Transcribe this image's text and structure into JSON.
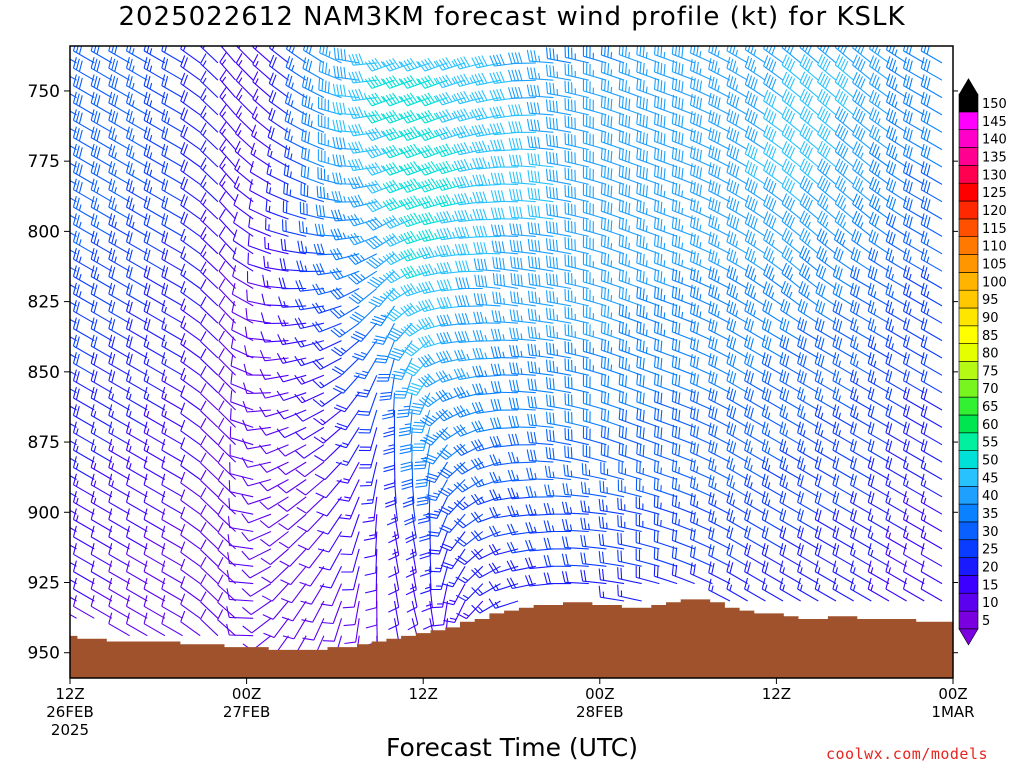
{
  "title": "2025022612 NAM3KM forecast wind profile (kt) for KSLK",
  "credit": "coolwx.com/models",
  "chart_data": {
    "type": "wind-barb-time-height",
    "xlabel": "Forecast Time (UTC)",
    "ylabel": "",
    "y_ticks": [
      750,
      775,
      800,
      825,
      850,
      875,
      900,
      925,
      950
    ],
    "y_range_hpa": [
      734,
      959
    ],
    "x_range_hours": [
      0,
      60
    ],
    "x_ticks": [
      {
        "hour": 0,
        "lines": [
          "12Z",
          "26FEB",
          "2025"
        ]
      },
      {
        "hour": 12,
        "lines": [
          "00Z",
          "27FEB"
        ]
      },
      {
        "hour": 24,
        "lines": [
          "12Z"
        ]
      },
      {
        "hour": 36,
        "lines": [
          "00Z",
          "28FEB"
        ]
      },
      {
        "hour": 48,
        "lines": [
          "12Z"
        ]
      },
      {
        "hour": 60,
        "lines": [
          "00Z",
          "1MAR"
        ]
      }
    ],
    "colorbar": {
      "levels": [
        5,
        10,
        15,
        20,
        25,
        30,
        35,
        40,
        45,
        50,
        55,
        60,
        65,
        70,
        75,
        80,
        85,
        90,
        95,
        100,
        105,
        110,
        115,
        120,
        125,
        130,
        135,
        140,
        145,
        150
      ],
      "colors": [
        "#7b00e0",
        "#5c00f0",
        "#3b00ff",
        "#1a1aff",
        "#0a3cff",
        "#0a5fff",
        "#0a82ff",
        "#1ea0ff",
        "#28c3ff",
        "#00e0d8",
        "#00f0a0",
        "#00e650",
        "#32f032",
        "#78f51e",
        "#b4fa14",
        "#e6ff00",
        "#ffff00",
        "#ffe600",
        "#ffc800",
        "#ffb400",
        "#ff9600",
        "#ff7800",
        "#ff5000",
        "#ff2800",
        "#ff0000",
        "#ff0050",
        "#ff0090",
        "#ff00c8",
        "#ff00ff",
        "#000000"
      ]
    },
    "terrain_pressure_hpa": [
      944,
      945,
      945,
      946,
      946,
      946,
      946,
      946,
      947,
      947,
      947,
      948,
      948,
      948,
      949,
      949,
      949,
      949,
      948,
      948,
      947,
      946,
      945,
      944,
      943,
      942,
      941,
      939,
      938,
      936,
      935,
      934,
      933,
      933,
      932,
      932,
      933,
      933,
      934,
      934,
      933,
      932,
      931,
      931,
      932,
      934,
      935,
      936,
      936,
      937,
      938,
      938,
      937,
      937,
      938,
      938,
      938,
      938,
      939,
      939,
      939
    ],
    "profile_hours": [
      0,
      4,
      8,
      11,
      14,
      18,
      22,
      24,
      26,
      30,
      34,
      38,
      42,
      46,
      50,
      54,
      58,
      61
    ],
    "profile_levels_hpa": [
      740,
      760,
      780,
      800,
      820,
      840,
      860,
      880,
      900,
      920,
      940
    ],
    "wind_direction_deg": [
      [
        300,
        300,
        300,
        300,
        300,
        300,
        300,
        300,
        300,
        300,
        300
      ],
      [
        300,
        300,
        300,
        300,
        300,
        300,
        300,
        300,
        300,
        300,
        300
      ],
      [
        300,
        300,
        300,
        300,
        300,
        300,
        300,
        300,
        300,
        300,
        300
      ],
      [
        320,
        320,
        320,
        320,
        320,
        320,
        320,
        320,
        320,
        320,
        320
      ],
      [
        310,
        310,
        300,
        290,
        280,
        270,
        260,
        250,
        240,
        230,
        220
      ],
      [
        300,
        290,
        290,
        280,
        260,
        250,
        240,
        230,
        220,
        210,
        200
      ],
      [
        250,
        250,
        250,
        240,
        220,
        200,
        180,
        180,
        170,
        170,
        170
      ],
      [
        250,
        250,
        250,
        250,
        250,
        220,
        190,
        180,
        170,
        170,
        160
      ],
      [
        250,
        250,
        250,
        260,
        260,
        260,
        240,
        220,
        210,
        200,
        190
      ],
      [
        260,
        260,
        270,
        270,
        280,
        270,
        270,
        260,
        260,
        250,
        250
      ],
      [
        280,
        280,
        280,
        280,
        280,
        280,
        280,
        280,
        270,
        270,
        270
      ],
      [
        290,
        290,
        290,
        290,
        290,
        290,
        290,
        290,
        280,
        280,
        280
      ],
      [
        290,
        290,
        290,
        290,
        290,
        290,
        290,
        290,
        290,
        290,
        290
      ],
      [
        300,
        300,
        300,
        300,
        300,
        300,
        300,
        300,
        300,
        300,
        300
      ],
      [
        310,
        310,
        310,
        310,
        310,
        300,
        300,
        300,
        300,
        300,
        300
      ],
      [
        310,
        310,
        310,
        310,
        300,
        300,
        300,
        300,
        300,
        300,
        300
      ],
      [
        300,
        300,
        300,
        300,
        300,
        300,
        300,
        300,
        300,
        300,
        300
      ],
      [
        300,
        300,
        300,
        300,
        300,
        300,
        300,
        300,
        300,
        300,
        300
      ]
    ],
    "wind_speed_kt": [
      [
        30,
        30,
        30,
        28,
        25,
        22,
        20,
        18,
        15,
        12,
        10
      ],
      [
        28,
        28,
        27,
        25,
        22,
        20,
        18,
        15,
        12,
        10,
        8
      ],
      [
        20,
        22,
        22,
        20,
        18,
        16,
        14,
        12,
        10,
        8,
        8
      ],
      [
        15,
        15,
        14,
        12,
        10,
        10,
        8,
        8,
        8,
        8,
        8
      ],
      [
        15,
        15,
        12,
        12,
        10,
        8,
        8,
        8,
        8,
        8,
        8
      ],
      [
        35,
        38,
        35,
        30,
        25,
        18,
        14,
        10,
        10,
        10,
        10
      ],
      [
        45,
        45,
        42,
        38,
        35,
        30,
        25,
        20,
        15,
        10,
        10
      ],
      [
        45,
        48,
        50,
        48,
        45,
        42,
        40,
        35,
        20,
        15,
        10
      ],
      [
        45,
        45,
        48,
        45,
        42,
        40,
        35,
        30,
        22,
        15,
        10
      ],
      [
        40,
        42,
        42,
        40,
        38,
        35,
        32,
        28,
        22,
        18,
        15
      ],
      [
        35,
        38,
        40,
        40,
        38,
        35,
        32,
        28,
        25,
        20,
        15
      ],
      [
        35,
        38,
        38,
        38,
        36,
        35,
        32,
        28,
        25,
        20,
        15
      ],
      [
        38,
        38,
        38,
        36,
        35,
        32,
        30,
        28,
        25,
        20,
        15
      ],
      [
        35,
        38,
        40,
        38,
        35,
        32,
        30,
        28,
        25,
        20,
        15
      ],
      [
        40,
        42,
        42,
        38,
        35,
        30,
        28,
        25,
        22,
        18,
        15
      ],
      [
        40,
        40,
        38,
        35,
        30,
        28,
        25,
        22,
        20,
        18,
        15
      ],
      [
        32,
        32,
        30,
        28,
        25,
        22,
        20,
        18,
        15,
        12,
        10
      ],
      [
        32,
        32,
        30,
        28,
        25,
        22,
        20,
        18,
        15,
        12,
        10
      ]
    ]
  }
}
